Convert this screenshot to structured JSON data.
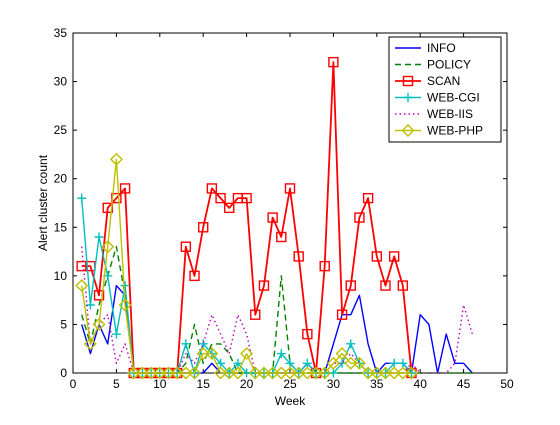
{
  "chart_data": {
    "type": "line",
    "title": "",
    "xlabel": "Week",
    "ylabel": "Alert cluster count",
    "xlim": [
      0,
      50
    ],
    "ylim": [
      0,
      35
    ],
    "xticks": [
      "0",
      "5",
      "10",
      "15",
      "20",
      "25",
      "30",
      "35",
      "40",
      "45",
      "50"
    ],
    "yticks": [
      "0",
      "5",
      "10",
      "15",
      "20",
      "25",
      "30",
      "35"
    ],
    "grid": false,
    "legend_position": "top-right",
    "series": [
      {
        "name": "INFO",
        "color": "#0000ff",
        "dash": "solid",
        "marker": "none",
        "x": [
          1,
          2,
          3,
          4,
          5,
          6,
          7,
          8,
          9,
          10,
          11,
          12,
          13,
          14,
          15,
          16,
          17,
          18,
          19,
          20,
          21,
          22,
          23,
          24,
          25,
          26,
          27,
          28,
          29,
          30,
          31,
          32,
          33,
          34,
          35,
          36,
          37,
          38,
          39,
          40,
          41,
          42,
          43,
          44,
          45,
          46
        ],
        "y": [
          5,
          2,
          5,
          3,
          9,
          8,
          0,
          0,
          0,
          0,
          0,
          0,
          0,
          0,
          0,
          1,
          0,
          0,
          0,
          0,
          0,
          0,
          0,
          0,
          0,
          0,
          1,
          0,
          0,
          3,
          6,
          6,
          8,
          3,
          0,
          1,
          1,
          1,
          0,
          6,
          5,
          0,
          4,
          1,
          1,
          0
        ]
      },
      {
        "name": "POLICY",
        "color": "#008000",
        "dash": "dashed",
        "marker": "none",
        "x": [
          1,
          2,
          3,
          4,
          5,
          6,
          7,
          8,
          9,
          10,
          11,
          12,
          13,
          14,
          15,
          16,
          17,
          18,
          19,
          20,
          21,
          22,
          23,
          24,
          25,
          26,
          27,
          28,
          29,
          30,
          31,
          32,
          33,
          34,
          35,
          36,
          37,
          38,
          39,
          40,
          41,
          42,
          43,
          44,
          45,
          46
        ],
        "y": [
          6,
          3,
          7,
          10,
          13,
          8,
          0,
          0,
          0,
          0,
          0,
          0,
          1,
          5,
          1,
          3,
          3,
          2,
          0,
          0,
          0,
          0,
          0,
          10,
          1,
          0,
          0,
          0,
          0,
          0,
          0,
          0,
          0,
          0,
          0,
          0,
          0,
          0,
          0,
          0,
          0,
          0,
          0,
          0,
          0,
          0
        ]
      },
      {
        "name": "SCAN",
        "color": "#ff0000",
        "dash": "solid",
        "marker": "square",
        "x": [
          1,
          2,
          3,
          4,
          5,
          6,
          7,
          8,
          9,
          10,
          11,
          12,
          13,
          14,
          15,
          16,
          17,
          18,
          19,
          20,
          21,
          22,
          23,
          24,
          25,
          26,
          27,
          28,
          29,
          30,
          31,
          32,
          33,
          34,
          35,
          36,
          37,
          38,
          39
        ],
        "y": [
          11,
          11,
          8,
          17,
          18,
          19,
          0,
          0,
          0,
          0,
          0,
          0,
          13,
          10,
          15,
          19,
          18,
          17,
          18,
          18,
          6,
          9,
          16,
          14,
          19,
          12,
          4,
          0,
          11,
          32,
          6,
          9,
          16,
          18,
          12,
          9,
          12,
          9,
          0
        ]
      },
      {
        "name": "WEB-CGI",
        "color": "#00bfbf",
        "dash": "solid",
        "marker": "plus",
        "x": [
          1,
          2,
          3,
          4,
          5,
          6,
          7,
          8,
          9,
          10,
          11,
          12,
          13,
          14,
          15,
          16,
          17,
          18,
          19,
          20,
          21,
          22,
          23,
          24,
          25,
          26,
          27,
          28,
          29,
          30,
          31,
          32,
          33,
          34,
          35,
          36,
          37,
          38,
          39
        ],
        "y": [
          18,
          7,
          14,
          10,
          4,
          9,
          0,
          0,
          0,
          0,
          0,
          0,
          3,
          0,
          3,
          2,
          1,
          0,
          1,
          0,
          0,
          0,
          0,
          2,
          1,
          0,
          1,
          0,
          0,
          0,
          1,
          3,
          1,
          0,
          0,
          0,
          1,
          1,
          0
        ]
      },
      {
        "name": "WEB-IIS",
        "color": "#bf00bf",
        "dash": "dotted",
        "marker": "none",
        "x": [
          1,
          2,
          3,
          4,
          5,
          6,
          7,
          8,
          9,
          10,
          11,
          12,
          13,
          14,
          15,
          16,
          17,
          18,
          19,
          20,
          21,
          22,
          23,
          24,
          25,
          26,
          27,
          28,
          29,
          30,
          31,
          32,
          33,
          34,
          35,
          36,
          37,
          38,
          39,
          40,
          41,
          42,
          43,
          44,
          45,
          46
        ],
        "y": [
          13,
          3,
          5,
          6,
          1,
          3,
          0,
          0,
          0,
          0,
          0,
          0,
          2,
          1,
          3,
          6,
          4,
          2,
          6,
          4,
          0,
          0,
          0,
          0,
          0,
          0,
          0,
          0,
          0,
          1,
          1,
          2,
          1,
          0,
          0,
          0,
          0,
          0,
          1,
          0,
          0,
          0,
          0,
          1,
          7,
          4
        ]
      },
      {
        "name": "WEB-PHP",
        "color": "#bfbf00",
        "dash": "solid",
        "marker": "diamond",
        "x": [
          1,
          2,
          3,
          4,
          5,
          6,
          7,
          8,
          9,
          10,
          11,
          12,
          13,
          14,
          15,
          16,
          17,
          18,
          19,
          20,
          21,
          22,
          23,
          24,
          25,
          26,
          27,
          28,
          29,
          30,
          31,
          32,
          33,
          34,
          35,
          36,
          37,
          38,
          39
        ],
        "y": [
          9,
          3,
          5,
          13,
          22,
          7,
          0,
          0,
          0,
          0,
          0,
          0,
          0,
          0,
          2,
          2,
          0,
          0,
          0,
          2,
          0,
          0,
          0,
          0,
          0,
          0,
          0,
          0,
          0,
          1,
          2,
          1,
          1,
          0,
          0,
          0,
          0,
          0,
          0
        ]
      }
    ]
  }
}
